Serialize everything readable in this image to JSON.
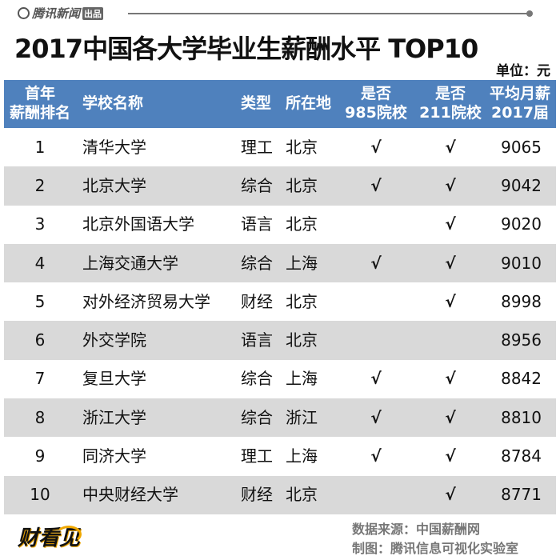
{
  "brand": {
    "name": "腾讯新闻",
    "tag": "出品"
  },
  "title": "2017中国各大学毕业生薪酬水平 TOP10",
  "unit": "单位：元",
  "chart_data": {
    "type": "table",
    "title": "2017中国各大学毕业生薪酬水平 TOP10",
    "columns": [
      [
        "首年",
        "薪酬排名"
      ],
      [
        "学校名称"
      ],
      [
        "类型"
      ],
      [
        "所在地"
      ],
      [
        "是否",
        "985院校"
      ],
      [
        "是否",
        "211院校"
      ],
      [
        "平均月薪",
        "2017届"
      ]
    ],
    "rows": [
      {
        "rank": "1",
        "name": "清华大学",
        "type": "理工",
        "loc": "北京",
        "is985": "√",
        "is211": "√",
        "salary": "9065"
      },
      {
        "rank": "2",
        "name": "北京大学",
        "type": "综合",
        "loc": "北京",
        "is985": "√",
        "is211": "√",
        "salary": "9042"
      },
      {
        "rank": "3",
        "name": "北京外国语大学",
        "type": "语言",
        "loc": "北京",
        "is985": "",
        "is211": "√",
        "salary": "9020"
      },
      {
        "rank": "4",
        "name": "上海交通大学",
        "type": "综合",
        "loc": "上海",
        "is985": "√",
        "is211": "√",
        "salary": "9010"
      },
      {
        "rank": "5",
        "name": "对外经济贸易大学",
        "type": "财经",
        "loc": "北京",
        "is985": "",
        "is211": "√",
        "salary": "8998"
      },
      {
        "rank": "6",
        "name": "外交学院",
        "type": "语言",
        "loc": "北京",
        "is985": "",
        "is211": "",
        "salary": "8956"
      },
      {
        "rank": "7",
        "name": "复旦大学",
        "type": "综合",
        "loc": "上海",
        "is985": "√",
        "is211": "√",
        "salary": "8842"
      },
      {
        "rank": "8",
        "name": "浙江大学",
        "type": "综合",
        "loc": "浙江",
        "is985": "√",
        "is211": "√",
        "salary": "8810"
      },
      {
        "rank": "9",
        "name": "同济大学",
        "type": "理工",
        "loc": "上海",
        "is985": "√",
        "is211": "√",
        "salary": "8784"
      },
      {
        "rank": "10",
        "name": "中央财经大学",
        "type": "财经",
        "loc": "北京",
        "is985": "",
        "is211": "√",
        "salary": "8771"
      }
    ]
  },
  "colors": {
    "header": "#4f81bd",
    "alt_row": "#d9d9d9"
  },
  "footer": {
    "source": "数据来源：中国薪酬网",
    "credit": "制图：腾讯信息可视化实验室",
    "logo": "财看见"
  }
}
